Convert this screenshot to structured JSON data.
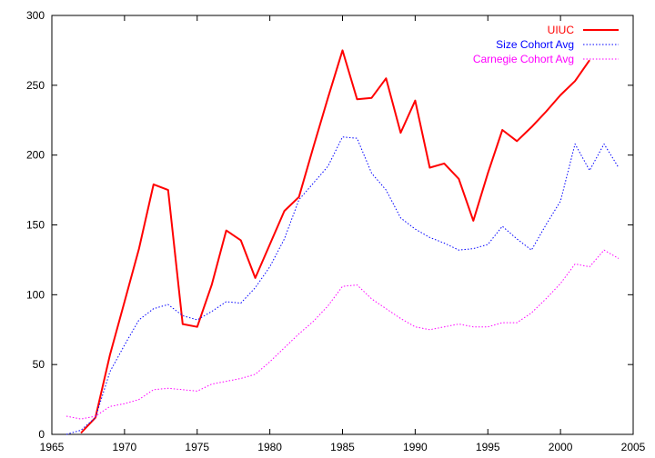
{
  "chart_data": {
    "type": "line",
    "title": "",
    "xlabel": "",
    "ylabel": "",
    "xlim": [
      1965,
      2005
    ],
    "ylim": [
      0,
      300
    ],
    "xticks": [
      1965,
      1970,
      1975,
      1980,
      1985,
      1990,
      1995,
      2000,
      2005
    ],
    "yticks": [
      0,
      50,
      100,
      150,
      200,
      250,
      300
    ],
    "grid": false,
    "legend": "top-right",
    "series": [
      {
        "name": "UIUC",
        "color": "#ff0000",
        "style": "solid",
        "x": [
          1967,
          1968,
          1969,
          1970,
          1971,
          1972,
          1973,
          1974,
          1975,
          1976,
          1977,
          1978,
          1979,
          1980,
          1981,
          1982,
          1983,
          1984,
          1985,
          1986,
          1987,
          1988,
          1989,
          1990,
          1991,
          1992,
          1993,
          1994,
          1995,
          1996,
          1997,
          1998,
          1999,
          2000,
          2001,
          2002
        ],
        "y": [
          1,
          12,
          57,
          95,
          133,
          179,
          175,
          79,
          77,
          107,
          146,
          139,
          112,
          136,
          160,
          170,
          206,
          241,
          275,
          240,
          241,
          255,
          216,
          239,
          191,
          194,
          183,
          153,
          187,
          218,
          210,
          220,
          231,
          243,
          253,
          268
        ]
      },
      {
        "name": "Size Cohort Avg",
        "color": "#0000ff",
        "style": "dotted",
        "x": [
          1966,
          1967,
          1968,
          1969,
          1970,
          1971,
          1972,
          1973,
          1974,
          1975,
          1976,
          1977,
          1978,
          1979,
          1980,
          1981,
          1982,
          1983,
          1984,
          1985,
          1986,
          1987,
          1988,
          1989,
          1990,
          1991,
          1992,
          1993,
          1994,
          1995,
          1996,
          1997,
          1998,
          1999,
          2000,
          2001,
          2002,
          2003,
          2004
        ],
        "y": [
          0,
          3,
          12,
          45,
          64,
          82,
          90,
          93,
          85,
          82,
          88,
          95,
          94,
          105,
          120,
          140,
          168,
          180,
          192,
          213,
          212,
          187,
          175,
          155,
          147,
          141,
          137,
          132,
          133,
          136,
          149,
          140,
          132,
          150,
          167,
          208,
          189,
          208,
          191
        ]
      },
      {
        "name": "Carnegie Cohort Avg",
        "color": "#ff00ff",
        "style": "dotted",
        "x": [
          1966,
          1967,
          1968,
          1969,
          1970,
          1971,
          1972,
          1973,
          1974,
          1975,
          1976,
          1977,
          1978,
          1979,
          1980,
          1981,
          1982,
          1983,
          1984,
          1985,
          1986,
          1987,
          1988,
          1989,
          1990,
          1991,
          1992,
          1993,
          1994,
          1995,
          1996,
          1997,
          1998,
          1999,
          2000,
          2001,
          2002,
          2003,
          2004
        ],
        "y": [
          13,
          11,
          13,
          20,
          22,
          25,
          32,
          33,
          32,
          31,
          36,
          38,
          40,
          43,
          52,
          62,
          72,
          81,
          92,
          106,
          107,
          97,
          90,
          83,
          77,
          75,
          77,
          79,
          77,
          77,
          80,
          80,
          87,
          97,
          108,
          122,
          120,
          132,
          126
        ]
      }
    ]
  }
}
